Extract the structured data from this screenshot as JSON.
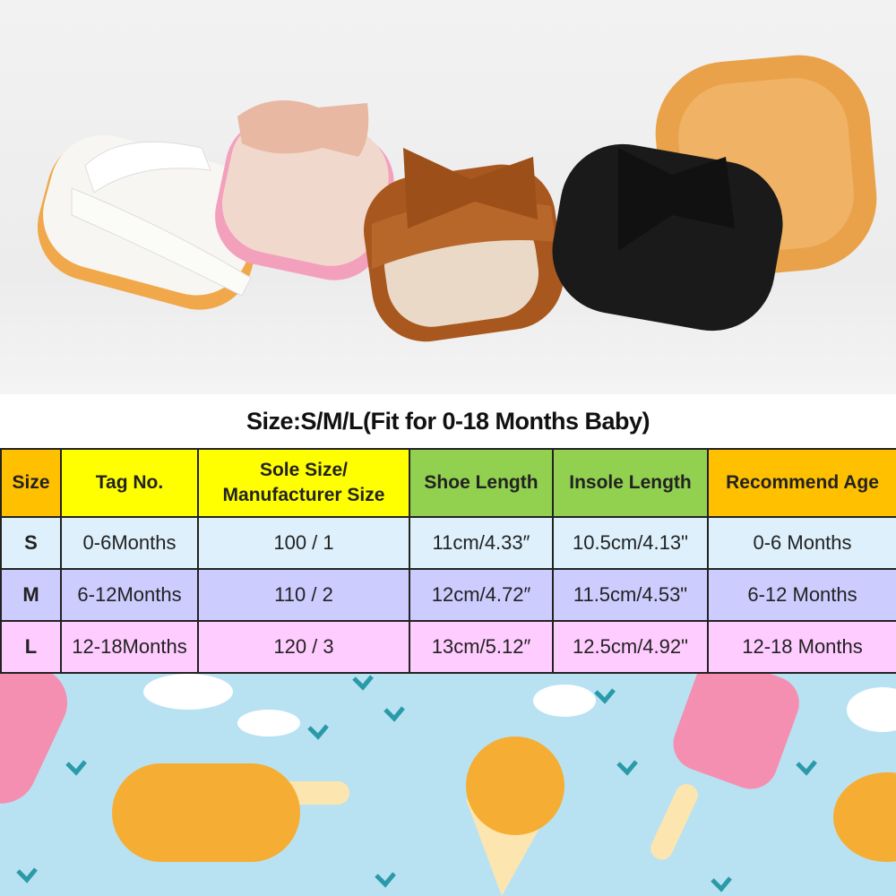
{
  "title": "Size:S/M/L(Fit for 0-18 Months Baby)",
  "colors": {
    "orange_header": "#FFC000",
    "yellow_header": "#FFFF00",
    "green_header": "#92D050",
    "row_s": "#DDF0FB",
    "row_m": "#CCCCFF",
    "row_l": "#FFCCFF",
    "background_blue": "#B8E2F2"
  },
  "table": {
    "headers": [
      "Size",
      "Tag No.",
      "Sole Size/ Manufacturer  Size",
      "Shoe Length",
      "Insole Length",
      "Recommend Age"
    ],
    "rows": [
      [
        "S",
        "0-6Months",
        "100 / 1",
        "11cm/4.33″",
        "10.5cm/4.13\"",
        "0-6 Months"
      ],
      [
        "M",
        "6-12Months",
        "110 / 2",
        "12cm/4.72″",
        "11.5cm/4.53\"",
        "6-12 Months"
      ],
      [
        "L",
        "12-18Months",
        "120 / 3",
        "13cm/5.12″",
        "12.5cm/4.92\"",
        "12-18 Months"
      ]
    ]
  }
}
